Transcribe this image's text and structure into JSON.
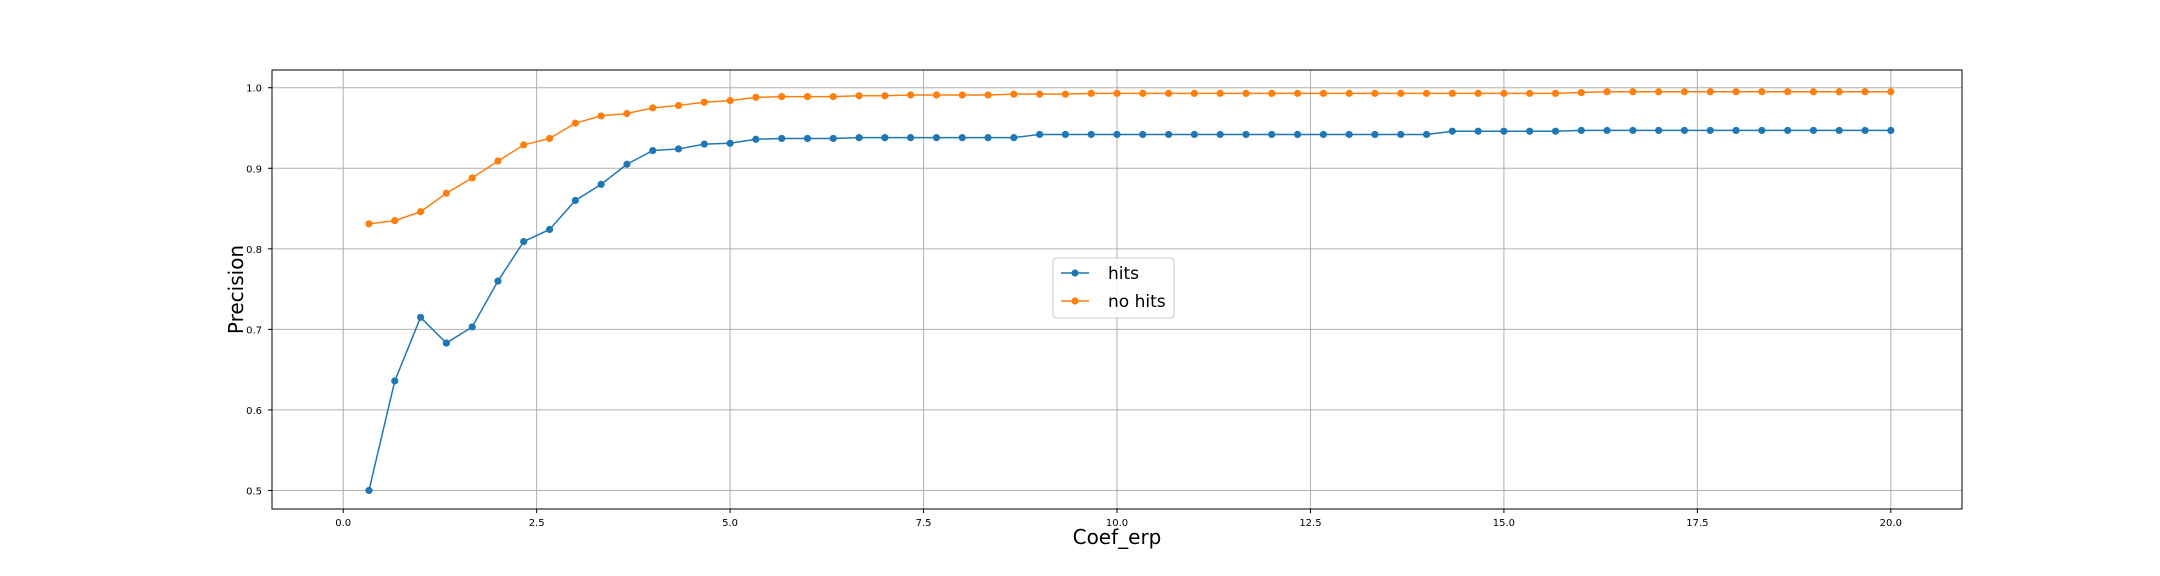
{
  "chart_data": {
    "type": "line",
    "title": "",
    "xlabel": "Coef_erp",
    "ylabel": "Precision",
    "xlim": [
      -0.92,
      20.92
    ],
    "ylim": [
      0.477,
      1.022
    ],
    "xticks": [
      0.0,
      2.5,
      5.0,
      7.5,
      10.0,
      12.5,
      15.0,
      17.5,
      20.0
    ],
    "xtick_labels": [
      "0.0",
      "2.5",
      "5.0",
      "7.5",
      "10.0",
      "12.5",
      "15.0",
      "17.5",
      "20.0"
    ],
    "yticks": [
      0.5,
      0.6,
      0.7,
      0.8,
      0.9,
      1.0
    ],
    "ytick_labels": [
      "0.5",
      "0.6",
      "0.7",
      "0.8",
      "0.9",
      "1.0"
    ],
    "grid": true,
    "legend_position": "center",
    "x": [
      0.333,
      0.667,
      1.0,
      1.333,
      1.667,
      2.0,
      2.333,
      2.667,
      3.0,
      3.333,
      3.667,
      4.0,
      4.333,
      4.667,
      5.0,
      5.333,
      5.667,
      6.0,
      6.333,
      6.667,
      7.0,
      7.333,
      7.667,
      8.0,
      8.333,
      8.667,
      9.0,
      9.333,
      9.667,
      10.0,
      10.333,
      10.667,
      11.0,
      11.333,
      11.667,
      12.0,
      12.333,
      12.667,
      13.0,
      13.333,
      13.667,
      14.0,
      14.333,
      14.667,
      15.0,
      15.333,
      15.667,
      16.0,
      16.333,
      16.667,
      17.0,
      17.333,
      17.667,
      18.0,
      18.333,
      18.667,
      19.0,
      19.333,
      19.667,
      20.0
    ],
    "series": [
      {
        "name": "hits",
        "color": "#1f77b4",
        "values": [
          0.5,
          0.636,
          0.715,
          0.683,
          0.703,
          0.76,
          0.809,
          0.824,
          0.86,
          0.88,
          0.905,
          0.922,
          0.924,
          0.93,
          0.931,
          0.936,
          0.937,
          0.937,
          0.937,
          0.938,
          0.938,
          0.938,
          0.938,
          0.938,
          0.938,
          0.938,
          0.942,
          0.942,
          0.942,
          0.942,
          0.942,
          0.942,
          0.942,
          0.942,
          0.942,
          0.942,
          0.942,
          0.942,
          0.942,
          0.942,
          0.942,
          0.942,
          0.946,
          0.946,
          0.946,
          0.946,
          0.946,
          0.947,
          0.947,
          0.947,
          0.947,
          0.947,
          0.947,
          0.947,
          0.947,
          0.947,
          0.947,
          0.947,
          0.947,
          0.947
        ]
      },
      {
        "name": "no hits",
        "color": "#ff7f0e",
        "values": [
          0.831,
          0.835,
          0.846,
          0.869,
          0.888,
          0.909,
          0.929,
          0.937,
          0.956,
          0.965,
          0.968,
          0.975,
          0.978,
          0.982,
          0.984,
          0.988,
          0.989,
          0.989,
          0.989,
          0.99,
          0.99,
          0.991,
          0.991,
          0.991,
          0.991,
          0.992,
          0.992,
          0.992,
          0.993,
          0.993,
          0.993,
          0.993,
          0.993,
          0.993,
          0.993,
          0.993,
          0.993,
          0.993,
          0.993,
          0.993,
          0.993,
          0.993,
          0.993,
          0.993,
          0.993,
          0.993,
          0.993,
          0.994,
          0.995,
          0.995,
          0.995,
          0.995,
          0.995,
          0.995,
          0.995,
          0.995,
          0.995,
          0.995,
          0.995,
          0.995
        ]
      }
    ]
  }
}
